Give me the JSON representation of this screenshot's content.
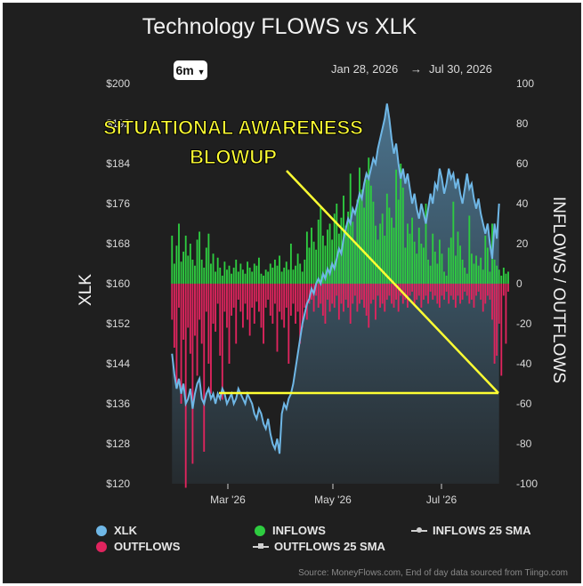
{
  "toolbar": {
    "period_label": "6m",
    "period_icon": "caret-down-icon"
  },
  "date_range": {
    "start": "Jan 28, 2026",
    "arrow": "→",
    "end": "Jul 30, 2026"
  },
  "annotation": {
    "text_line1": "SITUATIONAL AWARENESS",
    "text_line2": "BLOWUP",
    "color": "#ffff33"
  },
  "legend": {
    "xlk": "XLK",
    "outflows": "OUTFLOWS",
    "inflows": "INFLOWS",
    "outflows_sma": "OUTFLOWS 25 SMA",
    "inflows_sma": "INFLOWS 25 SMA"
  },
  "source": "Source: MoneyFlows.com, End of day data sourced from Tiingo.com",
  "colors": {
    "background": "#1f1f1f",
    "inflows": "#2ecc40",
    "outflows": "#e0245e",
    "xlk_line": "#6fb7e6",
    "annotation": "#ffff33"
  },
  "chart_data": {
    "type": "bar+area",
    "title": "Technology FLOWS vs XLK",
    "x_ticks": [
      "Mar '26",
      "May '26",
      "Jul '26"
    ],
    "y_left": {
      "label": "XLK",
      "range": [
        120,
        200
      ],
      "ticks": [
        "$200",
        "$192",
        "$184",
        "$176",
        "$168",
        "$160",
        "$152",
        "$144",
        "$136",
        "$128",
        "$120"
      ]
    },
    "y_right": {
      "label": "INFLOWS / OUTFLOWS",
      "range": [
        -100,
        100
      ],
      "ticks": [
        "100",
        "80",
        "60",
        "40",
        "20",
        "0",
        "-20",
        "-40",
        "-60",
        "-80",
        "-100"
      ]
    },
    "inflows": [
      24,
      10,
      19,
      30,
      11,
      16,
      24,
      14,
      20,
      12,
      9,
      22,
      26,
      12,
      8,
      18,
      25,
      10,
      15,
      6,
      13,
      8,
      4,
      11,
      7,
      9,
      5,
      8,
      12,
      6,
      10,
      7,
      5,
      11,
      8,
      6,
      10,
      9,
      13,
      5,
      4,
      7,
      6,
      10,
      8,
      12,
      9,
      14,
      6,
      8,
      11,
      7,
      20,
      7,
      9,
      15,
      10,
      6,
      12,
      26,
      18,
      28,
      21,
      17,
      32,
      38,
      24,
      19,
      27,
      30,
      22,
      35,
      40,
      25,
      33,
      44,
      29,
      36,
      55,
      31,
      20,
      42,
      58,
      47,
      38,
      52,
      63,
      49,
      41,
      29,
      22,
      30,
      35,
      24,
      45,
      38,
      33,
      28,
      57,
      42,
      60,
      48,
      18,
      30,
      25,
      33,
      21,
      15,
      28,
      20,
      18,
      40,
      12,
      9,
      25,
      16,
      10,
      22,
      15,
      6,
      4,
      18,
      23,
      41,
      14,
      26,
      19,
      12,
      8,
      5,
      34,
      15,
      10,
      14,
      9,
      13,
      7,
      24,
      18,
      6,
      30,
      12,
      9,
      7,
      4,
      8,
      5,
      6
    ],
    "outflows": [
      -18,
      -32,
      -50,
      -12,
      -60,
      -28,
      -102,
      -22,
      -35,
      -90,
      -26,
      -46,
      -18,
      -30,
      -84,
      -14,
      -40,
      -55,
      -20,
      -24,
      -10,
      -36,
      -58,
      -14,
      -22,
      -40,
      -16,
      -12,
      -30,
      -8,
      -14,
      -22,
      -10,
      -18,
      -26,
      -12,
      -20,
      -9,
      -14,
      -22,
      -30,
      -12,
      -8,
      -16,
      -20,
      -10,
      -34,
      -14,
      -18,
      -22,
      -12,
      -40,
      -16,
      -10,
      -20,
      -14,
      -30,
      -22,
      -12,
      -18,
      -10,
      -8,
      -14,
      -6,
      -12,
      -10,
      -16,
      -20,
      -8,
      -14,
      -10,
      -12,
      -6,
      -18,
      -10,
      -14,
      -8,
      -12,
      -20,
      -10,
      -6,
      -14,
      -10,
      -8,
      -12,
      -16,
      -22,
      -10,
      -8,
      -18,
      -6,
      -12,
      -10,
      -14,
      -8,
      -6,
      -10,
      -12,
      -8,
      -14,
      -6,
      -10,
      -8,
      -12,
      -6,
      -4,
      -10,
      -8,
      -6,
      -12,
      -8,
      -6,
      -10,
      -4,
      -8,
      -6,
      -10,
      -12,
      -6,
      -8,
      -4,
      -10,
      -6,
      -8,
      -12,
      -6,
      -10,
      -8,
      -4,
      -6,
      -10,
      -8,
      -12,
      -6,
      -4,
      -8,
      -14,
      -10,
      -6,
      -8,
      -18,
      -40,
      -36,
      -20,
      -46,
      -6,
      -30,
      -4
    ],
    "xlk": [
      146,
      142,
      139,
      141,
      138,
      140,
      136,
      137,
      139,
      135,
      138,
      140,
      141,
      137,
      136,
      138,
      139,
      137,
      138,
      136,
      138,
      137,
      139,
      138,
      136,
      137,
      138,
      136,
      137,
      139,
      138,
      137,
      136,
      138,
      137,
      136,
      134,
      133,
      135,
      134,
      132,
      131,
      133,
      130,
      128,
      127,
      129,
      126,
      134,
      136,
      135,
      137,
      138,
      140,
      143,
      146,
      149,
      152,
      154,
      156,
      157,
      159,
      158,
      160,
      161,
      160,
      162,
      161,
      163,
      162,
      164,
      163,
      165,
      167,
      166,
      169,
      171,
      173,
      172,
      175,
      174,
      176,
      178,
      177,
      180,
      182,
      181,
      183,
      185,
      184,
      187,
      189,
      191,
      193,
      196,
      193,
      189,
      186,
      188,
      184,
      181,
      183,
      180,
      182,
      179,
      176,
      178,
      175,
      173,
      176,
      174,
      172,
      175,
      178,
      176,
      180,
      179,
      183,
      181,
      178,
      180,
      183,
      181,
      182,
      179,
      181,
      178,
      176,
      179,
      182,
      179,
      180,
      177,
      175,
      177,
      174,
      172,
      170,
      172,
      168,
      165,
      172,
      169,
      176
    ]
  }
}
